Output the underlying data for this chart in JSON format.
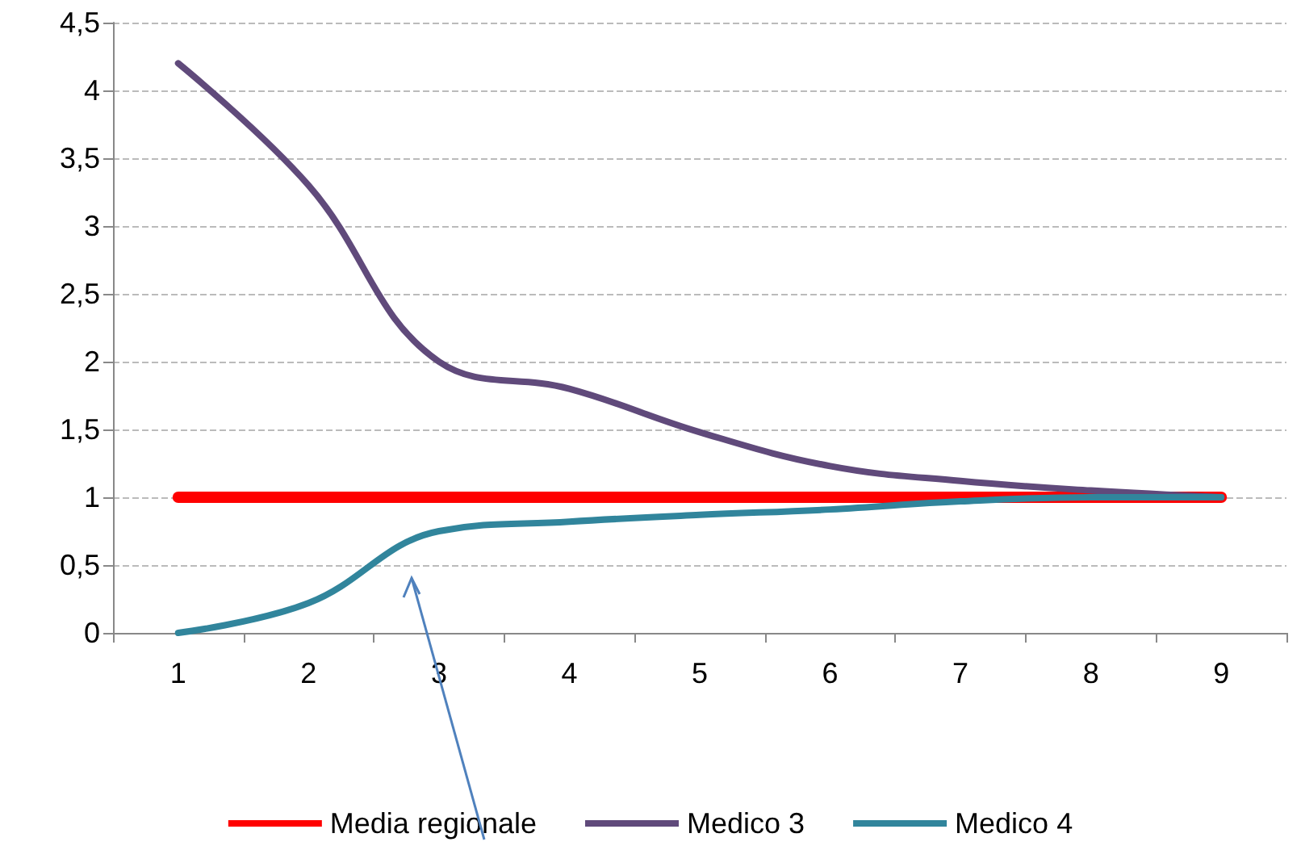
{
  "chart_data": {
    "type": "line",
    "categories": [
      "1",
      "2",
      "3",
      "4",
      "5",
      "6",
      "7",
      "8",
      "9"
    ],
    "series": [
      {
        "name": "Media regionale",
        "color": "#ff0000",
        "values": [
          1,
          1,
          1,
          1,
          1,
          1,
          1,
          1,
          1
        ]
      },
      {
        "name": "Medico 3",
        "color": "#604a7b",
        "values": [
          4.2,
          3.3,
          2.0,
          1.8,
          1.48,
          1.23,
          1.12,
          1.05,
          1
        ]
      },
      {
        "name": "Medico 4",
        "color": "#31859c",
        "values": [
          0,
          0.22,
          0.75,
          0.82,
          0.87,
          0.91,
          0.97,
          1.0,
          1.0
        ]
      }
    ],
    "ylim": [
      0,
      4.5
    ],
    "yticks": [
      0,
      {
        "value": 0.5,
        "label": "0,5"
      },
      1,
      {
        "value": 1.5,
        "label": "1,5"
      },
      2,
      {
        "value": 2.5,
        "label": "2,5"
      },
      3,
      {
        "value": 3.5,
        "label": "3,5"
      },
      4,
      {
        "value": 4.5,
        "label": "4,5"
      }
    ],
    "grid": "y",
    "legend": "bottom",
    "marker": "none",
    "line_style": "solid"
  }
}
